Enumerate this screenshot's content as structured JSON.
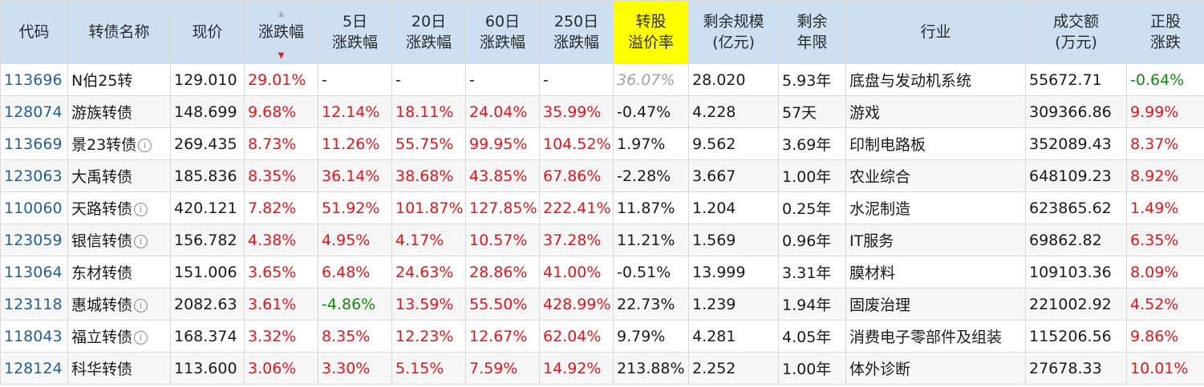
{
  "headers": {
    "code": "代码",
    "name": "转债名称",
    "price": "现价",
    "change": "涨跌幅",
    "chg5_l1": "5日",
    "chg5_l2": "涨跌幅",
    "chg20_l1": "20日",
    "chg20_l2": "涨跌幅",
    "chg60_l1": "60日",
    "chg60_l2": "涨跌幅",
    "chg250_l1": "250日",
    "chg250_l2": "涨跌幅",
    "premium_l1": "转股",
    "premium_l2": "溢价率",
    "scale_l1": "剩余规模",
    "scale_l2": "(亿元)",
    "years_l1": "剩余",
    "years_l2": "年限",
    "industry": "行业",
    "volume_l1": "成交额",
    "volume_l2": "(万元)",
    "stock_l1": "正股",
    "stock_l2": "涨跌"
  },
  "rows": [
    {
      "code": "113696",
      "name": "N伯25转",
      "info": false,
      "price": "129.010",
      "change": "29.01%",
      "c5": "-",
      "c20": "-",
      "c60": "-",
      "c250": "-",
      "premium": "36.07%",
      "scale": "28.020",
      "years": "5.93年",
      "industry": "底盘与发动机系统",
      "volume": "55672.71",
      "stock": "-0.64%"
    },
    {
      "code": "128074",
      "name": "游族转债",
      "info": false,
      "price": "148.699",
      "change": "9.68%",
      "c5": "12.14%",
      "c20": "18.11%",
      "c60": "24.04%",
      "c250": "35.99%",
      "premium": "-0.47%",
      "scale": "4.228",
      "years": "57天",
      "industry": "游戏",
      "volume": "309366.86",
      "stock": "9.99%"
    },
    {
      "code": "113669",
      "name": "景23转债",
      "info": true,
      "price": "269.435",
      "change": "8.73%",
      "c5": "11.26%",
      "c20": "55.75%",
      "c60": "99.95%",
      "c250": "104.52%",
      "premium": "1.97%",
      "scale": "9.562",
      "years": "3.69年",
      "industry": "印制电路板",
      "volume": "352089.43",
      "stock": "8.37%"
    },
    {
      "code": "123063",
      "name": "大禹转债",
      "info": false,
      "price": "185.836",
      "change": "8.35%",
      "c5": "36.14%",
      "c20": "38.68%",
      "c60": "43.85%",
      "c250": "67.86%",
      "premium": "-2.28%",
      "scale": "3.667",
      "years": "1.00年",
      "industry": "农业综合",
      "volume": "648109.23",
      "stock": "8.92%"
    },
    {
      "code": "110060",
      "name": "天路转债",
      "info": true,
      "price": "420.121",
      "change": "7.82%",
      "c5": "51.92%",
      "c20": "101.87%",
      "c60": "127.85%",
      "c250": "222.41%",
      "premium": "11.87%",
      "scale": "1.204",
      "years": "0.25年",
      "industry": "水泥制造",
      "volume": "623865.62",
      "stock": "1.49%"
    },
    {
      "code": "123059",
      "name": "银信转债",
      "info": true,
      "price": "156.782",
      "change": "4.38%",
      "c5": "4.95%",
      "c20": "4.17%",
      "c60": "10.57%",
      "c250": "37.28%",
      "premium": "11.21%",
      "scale": "1.569",
      "years": "0.96年",
      "industry": "IT服务",
      "volume": "69862.82",
      "stock": "6.35%"
    },
    {
      "code": "113064",
      "name": "东材转债",
      "info": false,
      "price": "151.006",
      "change": "3.65%",
      "c5": "6.48%",
      "c20": "24.63%",
      "c60": "28.86%",
      "c250": "41.00%",
      "premium": "-0.51%",
      "scale": "13.999",
      "years": "3.31年",
      "industry": "膜材料",
      "volume": "109103.36",
      "stock": "8.09%"
    },
    {
      "code": "123118",
      "name": "惠城转债",
      "info": true,
      "price": "2082.63",
      "change": "3.61%",
      "c5": "-4.86%",
      "c20": "13.59%",
      "c60": "55.50%",
      "c250": "428.99%",
      "premium": "22.73%",
      "scale": "1.239",
      "years": "1.94年",
      "industry": "固废治理",
      "volume": "221002.92",
      "stock": "4.52%"
    },
    {
      "code": "118043",
      "name": "福立转债",
      "info": true,
      "price": "168.374",
      "change": "3.32%",
      "c5": "8.35%",
      "c20": "12.23%",
      "c60": "12.67%",
      "c250": "62.04%",
      "premium": "9.79%",
      "scale": "4.281",
      "years": "4.05年",
      "industry": "消费电子零部件及组装",
      "volume": "115206.56",
      "stock": "9.86%"
    },
    {
      "code": "128124",
      "name": "科华转债",
      "info": false,
      "price": "113.600",
      "change": "3.06%",
      "c5": "3.30%",
      "c20": "5.15%",
      "c60": "7.59%",
      "c250": "14.92%",
      "premium": "213.88%",
      "scale": "2.252",
      "years": "1.00年",
      "industry": "体外诊断",
      "volume": "27678.33",
      "stock": "10.01%"
    }
  ],
  "colors": {
    "header_bg": "#cde0f2",
    "header_highlight": "#ffff00",
    "up": "#e3141a",
    "down": "#118a11",
    "code_link": "#1f5f9e"
  },
  "icons": {
    "info": "info-circle-icon",
    "sort": "sort-desc-icon"
  }
}
